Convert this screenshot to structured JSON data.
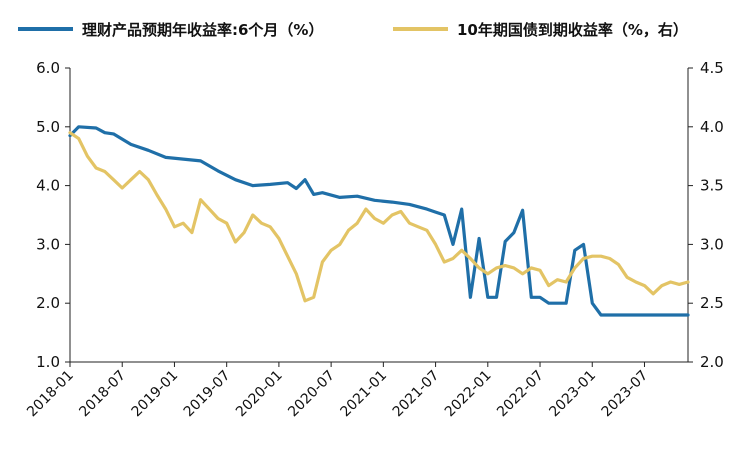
{
  "chart_data": {
    "type": "line",
    "x_range": [
      "2018-01",
      "2023-12"
    ],
    "x_ticks": [
      "2018-01",
      "2018-07",
      "2019-01",
      "2019-07",
      "2020-01",
      "2020-07",
      "2021-01",
      "2021-07",
      "2022-01",
      "2022-07",
      "2023-01",
      "2023-07"
    ],
    "y_left": {
      "lim": [
        1.0,
        6.0
      ],
      "ticks": [
        "1.0",
        "2.0",
        "3.0",
        "4.0",
        "5.0",
        "6.0"
      ]
    },
    "y_right": {
      "lim": [
        2.0,
        4.5
      ],
      "ticks": [
        "2.0",
        "2.5",
        "3.0",
        "3.5",
        "4.0",
        "4.5"
      ]
    },
    "grid": false,
    "legend_position": "top",
    "series": [
      {
        "name": "理财产品预期年收益率:6个月（%）",
        "axis": "left",
        "color": "#1f6fa8",
        "points": [
          [
            "2018-01",
            4.85
          ],
          [
            "2018-02",
            5.0
          ],
          [
            "2018-04",
            4.98
          ],
          [
            "2018-05",
            4.9
          ],
          [
            "2018-06",
            4.88
          ],
          [
            "2018-08",
            4.7
          ],
          [
            "2018-10",
            4.6
          ],
          [
            "2018-12",
            4.48
          ],
          [
            "2019-02",
            4.45
          ],
          [
            "2019-04",
            4.42
          ],
          [
            "2019-06",
            4.25
          ],
          [
            "2019-08",
            4.1
          ],
          [
            "2019-10",
            4.0
          ],
          [
            "2019-12",
            4.02
          ],
          [
            "2020-02",
            4.05
          ],
          [
            "2020-03",
            3.95
          ],
          [
            "2020-04",
            4.1
          ],
          [
            "2020-05",
            3.85
          ],
          [
            "2020-06",
            3.88
          ],
          [
            "2020-08",
            3.8
          ],
          [
            "2020-10",
            3.82
          ],
          [
            "2020-12",
            3.75
          ],
          [
            "2021-02",
            3.72
          ],
          [
            "2021-04",
            3.68
          ],
          [
            "2021-06",
            3.6
          ],
          [
            "2021-07",
            3.55
          ],
          [
            "2021-08",
            3.5
          ],
          [
            "2021-09",
            3.0
          ],
          [
            "2021-10",
            3.6
          ],
          [
            "2021-11",
            2.1
          ],
          [
            "2021-12",
            3.1
          ],
          [
            "2022-01",
            2.1
          ],
          [
            "2022-02",
            2.1
          ],
          [
            "2022-03",
            3.05
          ],
          [
            "2022-04",
            3.2
          ],
          [
            "2022-05",
            3.58
          ],
          [
            "2022-06",
            2.1
          ],
          [
            "2022-07",
            2.1
          ],
          [
            "2022-08",
            2.0
          ],
          [
            "2022-10",
            2.0
          ],
          [
            "2022-11",
            2.9
          ],
          [
            "2022-12",
            3.0
          ],
          [
            "2023-01",
            2.0
          ],
          [
            "2023-02",
            1.8
          ],
          [
            "2023-04",
            1.8
          ],
          [
            "2023-06",
            1.8
          ],
          [
            "2023-08",
            1.8
          ],
          [
            "2023-10",
            1.8
          ],
          [
            "2023-12",
            1.8
          ]
        ]
      },
      {
        "name": "10年期国债到期收益率（%，右）",
        "axis": "right",
        "color": "#e3c465",
        "points": [
          [
            "2018-01",
            3.95
          ],
          [
            "2018-02",
            3.9
          ],
          [
            "2018-03",
            3.75
          ],
          [
            "2018-04",
            3.65
          ],
          [
            "2018-05",
            3.62
          ],
          [
            "2018-06",
            3.55
          ],
          [
            "2018-07",
            3.48
          ],
          [
            "2018-08",
            3.55
          ],
          [
            "2018-09",
            3.62
          ],
          [
            "2018-10",
            3.55
          ],
          [
            "2018-11",
            3.42
          ],
          [
            "2018-12",
            3.3
          ],
          [
            "2019-01",
            3.15
          ],
          [
            "2019-02",
            3.18
          ],
          [
            "2019-03",
            3.1
          ],
          [
            "2019-04",
            3.38
          ],
          [
            "2019-05",
            3.3
          ],
          [
            "2019-06",
            3.22
          ],
          [
            "2019-07",
            3.18
          ],
          [
            "2019-08",
            3.02
          ],
          [
            "2019-09",
            3.1
          ],
          [
            "2019-10",
            3.25
          ],
          [
            "2019-11",
            3.18
          ],
          [
            "2019-12",
            3.15
          ],
          [
            "2020-01",
            3.05
          ],
          [
            "2020-02",
            2.9
          ],
          [
            "2020-03",
            2.75
          ],
          [
            "2020-04",
            2.52
          ],
          [
            "2020-05",
            2.55
          ],
          [
            "2020-06",
            2.85
          ],
          [
            "2020-07",
            2.95
          ],
          [
            "2020-08",
            3.0
          ],
          [
            "2020-09",
            3.12
          ],
          [
            "2020-10",
            3.18
          ],
          [
            "2020-11",
            3.3
          ],
          [
            "2020-12",
            3.22
          ],
          [
            "2021-01",
            3.18
          ],
          [
            "2021-02",
            3.25
          ],
          [
            "2021-03",
            3.28
          ],
          [
            "2021-04",
            3.18
          ],
          [
            "2021-05",
            3.15
          ],
          [
            "2021-06",
            3.12
          ],
          [
            "2021-07",
            3.0
          ],
          [
            "2021-08",
            2.85
          ],
          [
            "2021-09",
            2.88
          ],
          [
            "2021-10",
            2.95
          ],
          [
            "2021-11",
            2.88
          ],
          [
            "2021-12",
            2.8
          ],
          [
            "2022-01",
            2.75
          ],
          [
            "2022-02",
            2.8
          ],
          [
            "2022-03",
            2.82
          ],
          [
            "2022-04",
            2.8
          ],
          [
            "2022-05",
            2.75
          ],
          [
            "2022-06",
            2.8
          ],
          [
            "2022-07",
            2.78
          ],
          [
            "2022-08",
            2.65
          ],
          [
            "2022-09",
            2.7
          ],
          [
            "2022-10",
            2.68
          ],
          [
            "2022-11",
            2.8
          ],
          [
            "2022-12",
            2.88
          ],
          [
            "2023-01",
            2.9
          ],
          [
            "2023-02",
            2.9
          ],
          [
            "2023-03",
            2.88
          ],
          [
            "2023-04",
            2.83
          ],
          [
            "2023-05",
            2.72
          ],
          [
            "2023-06",
            2.68
          ],
          [
            "2023-07",
            2.65
          ],
          [
            "2023-08",
            2.58
          ],
          [
            "2023-09",
            2.65
          ],
          [
            "2023-10",
            2.68
          ],
          [
            "2023-11",
            2.66
          ],
          [
            "2023-12",
            2.68
          ]
        ]
      }
    ]
  }
}
